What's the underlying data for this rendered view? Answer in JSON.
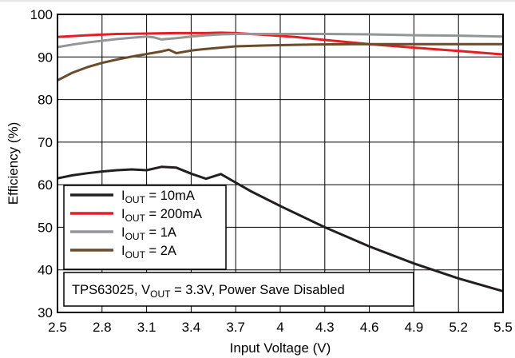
{
  "chart_data": {
    "type": "line",
    "xlabel": "Input Voltage (V)",
    "ylabel": "Efficiency (%)",
    "xlim": [
      2.5,
      5.5
    ],
    "ylim": [
      30,
      100
    ],
    "x_ticks": [
      "2.5",
      "2.8",
      "3.1",
      "3.4",
      "3.7",
      "4",
      "4.3",
      "4.6",
      "4.9",
      "5.2",
      "5.5"
    ],
    "y_ticks": [
      "30",
      "40",
      "50",
      "60",
      "70",
      "80",
      "90",
      "100"
    ],
    "grid": true,
    "legend_position": "lower-left",
    "annotation": {
      "prefix": "TPS63025, V",
      "sub": "OUT",
      "suffix": " = 3.3V, Power Save Disabled"
    },
    "series": [
      {
        "name": "10mA",
        "label_main": "I",
        "label_sub": "OUT",
        "label_suffix": " = 10mA",
        "color": "#231f20",
        "x": [
          2.5,
          2.6,
          2.7,
          2.8,
          2.9,
          3.0,
          3.1,
          3.2,
          3.3,
          3.4,
          3.5,
          3.6,
          3.7,
          3.8,
          4.0,
          4.3,
          4.6,
          4.9,
          5.2,
          5.5
        ],
        "y": [
          61.5,
          62.2,
          62.7,
          63.1,
          63.4,
          63.6,
          63.4,
          64.2,
          64.0,
          62.6,
          61.4,
          62.5,
          60.5,
          58.5,
          55.0,
          50.0,
          45.5,
          41.5,
          38.0,
          35.0
        ]
      },
      {
        "name": "200mA",
        "label_main": "I",
        "label_sub": "OUT",
        "label_suffix": " = 200mA",
        "color": "#e41e25",
        "x": [
          2.5,
          2.7,
          2.9,
          3.1,
          3.3,
          3.5,
          3.6,
          3.7,
          3.9,
          4.1,
          4.3,
          4.6,
          4.9,
          5.2,
          5.5
        ],
        "y": [
          94.7,
          95.1,
          95.4,
          95.5,
          95.6,
          95.6,
          95.7,
          95.6,
          95.2,
          94.7,
          94.0,
          93.0,
          92.2,
          91.4,
          90.6
        ]
      },
      {
        "name": "1A",
        "label_main": "I",
        "label_sub": "OUT",
        "label_suffix": " = 1A",
        "color": "#939598",
        "x": [
          2.5,
          2.6,
          2.7,
          2.8,
          2.9,
          3.0,
          3.1,
          3.15,
          3.2,
          3.3,
          3.4,
          3.5,
          3.6,
          3.7,
          4.0,
          4.3,
          4.6,
          4.9,
          5.2,
          5.5
        ],
        "y": [
          92.3,
          92.9,
          93.4,
          93.8,
          94.2,
          94.5,
          94.8,
          94.6,
          94.1,
          94.4,
          94.8,
          95.1,
          95.3,
          95.4,
          95.4,
          95.4,
          95.3,
          95.1,
          95.0,
          94.8
        ]
      },
      {
        "name": "2A",
        "label_main": "I",
        "label_sub": "OUT",
        "label_suffix": " = 2A",
        "color": "#6b4c2a",
        "x": [
          2.5,
          2.6,
          2.7,
          2.8,
          2.9,
          3.0,
          3.1,
          3.2,
          3.25,
          3.3,
          3.4,
          3.5,
          3.6,
          3.7,
          3.9,
          4.2,
          4.5,
          4.8,
          5.1,
          5.5
        ],
        "y": [
          84.5,
          86.3,
          87.6,
          88.6,
          89.4,
          90.1,
          90.7,
          91.3,
          91.7,
          90.9,
          91.5,
          91.9,
          92.2,
          92.5,
          92.7,
          92.9,
          93.0,
          93.0,
          93.0,
          93.0
        ]
      }
    ]
  }
}
